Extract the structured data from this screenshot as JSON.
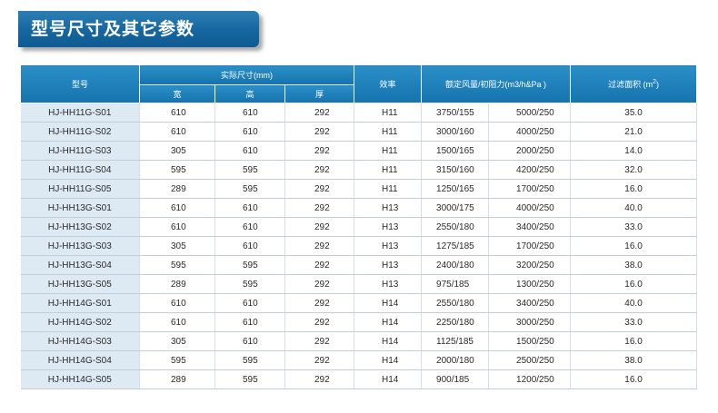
{
  "title": "型号尺寸及其它参数",
  "headers": {
    "model": "型号",
    "actual_size": "实际尺寸(mm)",
    "width": "宽",
    "height": "高",
    "depth": "厚",
    "efficiency": "效率",
    "airflow_resistance": "额定风量/初阻力(m3/h&Pa )",
    "filter_area": "过滤面积 (m",
    "filter_area_sup": "2",
    "filter_area_close": ")"
  },
  "rows": [
    [
      "HJ-HH11G-S01",
      "610",
      "610",
      "292",
      "H11",
      "3750/155",
      "5000/250",
      "35.0"
    ],
    [
      "HJ-HH11G-S02",
      "610",
      "610",
      "292",
      "H11",
      "3000/160",
      "4000/250",
      "21.0"
    ],
    [
      "HJ-HH11G-S03",
      "305",
      "610",
      "292",
      "H11",
      "1500/165",
      "2000/250",
      "14.0"
    ],
    [
      "HJ-HH11G-S04",
      "595",
      "595",
      "292",
      "H11",
      "3150/160",
      "4200/250",
      "32.0"
    ],
    [
      "HJ-HH11G-S05",
      "289",
      "595",
      "292",
      "H11",
      "1250/165",
      "1700/250",
      "16.0"
    ],
    [
      "HJ-HH13G-S01",
      "610",
      "610",
      "292",
      "H13",
      "3000/175",
      "4000/250",
      "40.0"
    ],
    [
      "HJ-HH13G-S02",
      "610",
      "610",
      "292",
      "H13",
      "2550/180",
      "3400/250",
      "33.0"
    ],
    [
      "HJ-HH13G-S03",
      "305",
      "610",
      "292",
      "H13",
      "1275/185",
      "1700/250",
      "16.0"
    ],
    [
      "HJ-HH13G-S04",
      "595",
      "595",
      "292",
      "H13",
      "2400/180",
      "3200/250",
      "38.0"
    ],
    [
      "HJ-HH13G-S05",
      "289",
      "595",
      "292",
      "H13",
      "975/185",
      "1300/250",
      "16.0"
    ],
    [
      "HJ-HH14G-S01",
      "610",
      "610",
      "292",
      "H14",
      "2550/180",
      "3400/250",
      "40.0"
    ],
    [
      "HJ-HH14G-S02",
      "610",
      "610",
      "292",
      "H14",
      "2250/180",
      "3000/250",
      "33.0"
    ],
    [
      "HJ-HH14G-S03",
      "305",
      "610",
      "292",
      "H14",
      "1125/185",
      "1500/250",
      "16.0"
    ],
    [
      "HJ-HH14G-S04",
      "595",
      "595",
      "292",
      "H14",
      "2000/180",
      "2500/250",
      "38.0"
    ],
    [
      "HJ-HH14G-S05",
      "289",
      "595",
      "292",
      "H14",
      "900/185",
      "1200/250",
      "16.0"
    ]
  ]
}
